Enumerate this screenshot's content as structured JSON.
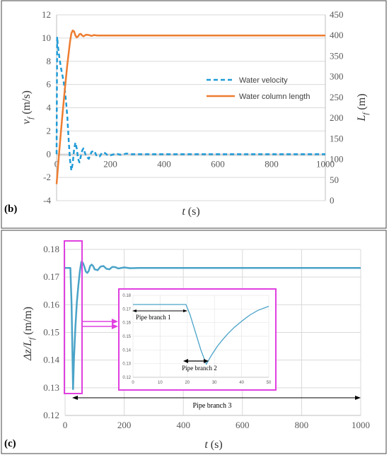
{
  "chart_data": [
    {
      "panel_label": "(b)",
      "type": "line",
      "xlabel_var": "t",
      "xlabel_unit": " (s)",
      "ylabel_var": "v",
      "ylabel_sub": "f",
      "ylabel_unit": " (m/s)",
      "y2label_var": "L",
      "y2label_sub": "f",
      "y2label_unit": " (m)",
      "xlim": [
        0,
        1000
      ],
      "ylim": [
        -4,
        12
      ],
      "y2lim": [
        0,
        450
      ],
      "xticks": [
        "0",
        "200",
        "400",
        "600",
        "800",
        "1000"
      ],
      "yticks": [
        "-4",
        "-2",
        "0",
        "2",
        "4",
        "6",
        "8",
        "10",
        "12"
      ],
      "y2ticks": [
        "0",
        "50",
        "100",
        "150",
        "200",
        "250",
        "300",
        "350",
        "400",
        "450"
      ],
      "legend_position": "center-right",
      "series": [
        {
          "name": "Water velocity",
          "axis": "left",
          "style": "dashed",
          "color": "#1f9bd7",
          "x": [
            0,
            2,
            5,
            10,
            15,
            20,
            25,
            30,
            35,
            40,
            45,
            50,
            55,
            60,
            65,
            70,
            75,
            80,
            85,
            90,
            95,
            100,
            110,
            120,
            130,
            140,
            150,
            160,
            170,
            180,
            190,
            200,
            220,
            240,
            260,
            280,
            300,
            350,
            400,
            450,
            500,
            600,
            700,
            800,
            900,
            1000
          ],
          "y": [
            0,
            10.1,
            9.3,
            8.4,
            7.6,
            7.0,
            6.4,
            5.7,
            4.6,
            3.2,
            1.2,
            -0.5,
            -1.4,
            -0.8,
            0.4,
            1.0,
            0.5,
            -0.4,
            -0.7,
            -0.2,
            0.3,
            0.5,
            -0.2,
            -0.4,
            0.2,
            0.3,
            -0.2,
            -0.2,
            0.15,
            0.1,
            -0.1,
            -0.1,
            0.05,
            -0.05,
            0.05,
            0.0,
            0.0,
            0.0,
            0.0,
            0.0,
            0.0,
            0.0,
            0.0,
            0.0,
            0.0,
            0.0
          ]
        },
        {
          "name": "Water column length",
          "axis": "right",
          "style": "solid",
          "color": "#ed7d31",
          "x": [
            0,
            10,
            20,
            30,
            40,
            50,
            55,
            60,
            65,
            70,
            75,
            80,
            85,
            90,
            95,
            100,
            110,
            120,
            130,
            140,
            150,
            160,
            180,
            200,
            250,
            300,
            400,
            500,
            600,
            700,
            800,
            900,
            1000
          ],
          "y": [
            40,
            120,
            195,
            265,
            330,
            385,
            405,
            412,
            410,
            400,
            395,
            398,
            403,
            404,
            400,
            398,
            402,
            401,
            399,
            401,
            400,
            400,
            400,
            400,
            400,
            400,
            400,
            400,
            400,
            400,
            400,
            400,
            400
          ]
        }
      ]
    },
    {
      "panel_label": "(c)",
      "type": "line",
      "xlabel_var": "t",
      "xlabel_unit": " (s)",
      "ylabel_var": "Δz/L",
      "ylabel_sub": "f",
      "ylabel_unit": " (m/m)",
      "xlim": [
        0,
        1000
      ],
      "ylim": [
        0.12,
        0.18
      ],
      "xticks": [
        "0",
        "200",
        "400",
        "600",
        "800",
        "1000"
      ],
      "yticks": [
        "0.12",
        "0.13",
        "0.14",
        "0.15",
        "0.16",
        "0.17",
        "0.18"
      ],
      "series": [
        {
          "color": "#4aa3c8",
          "x": [
            0,
            10,
            18,
            22,
            27,
            30,
            35,
            40,
            45,
            50,
            55,
            60,
            65,
            70,
            75,
            80,
            85,
            90,
            95,
            100,
            110,
            120,
            130,
            140,
            150,
            160,
            170,
            180,
            200,
            220,
            250,
            300,
            400,
            500,
            600,
            700,
            800,
            900,
            1000
          ],
          "y": [
            0.1733,
            0.1733,
            0.1733,
            0.16,
            0.1295,
            0.14,
            0.152,
            0.161,
            0.167,
            0.172,
            0.1755,
            0.1752,
            0.1738,
            0.172,
            0.1715,
            0.1722,
            0.174,
            0.1745,
            0.174,
            0.1728,
            0.1725,
            0.1738,
            0.174,
            0.173,
            0.1728,
            0.1737,
            0.1736,
            0.1731,
            0.1735,
            0.1732,
            0.1733,
            0.1733,
            0.1733,
            0.1733,
            0.1733,
            0.1733,
            0.1733,
            0.1733,
            0.1733
          ]
        }
      ],
      "annotation": "Pipe branch 3",
      "inset": {
        "type": "line",
        "xlim": [
          0,
          50
        ],
        "ylim": [
          0.12,
          0.18
        ],
        "xticks": [
          "0",
          "10",
          "20",
          "30",
          "40",
          "50"
        ],
        "yticks": [
          "0.12",
          "0.13",
          "0.14",
          "0.15",
          "0.16",
          "0.17",
          "0.18"
        ],
        "series": [
          {
            "color": "#4aa3c8",
            "x": [
              0,
              5,
              10,
              15,
              19.5,
              21,
              23,
              25,
              27,
              29,
              31,
              33,
              35,
              37,
              40,
              43,
              46,
              50
            ],
            "y": [
              0.1733,
              0.1733,
              0.1733,
              0.1733,
              0.1733,
              0.166,
              0.153,
              0.14,
              0.1295,
              0.1365,
              0.1425,
              0.1475,
              0.152,
              0.156,
              0.161,
              0.1655,
              0.169,
              0.172
            ]
          }
        ],
        "annotations": [
          "Pipe branch 1",
          "Pipe branch 2"
        ]
      }
    }
  ]
}
